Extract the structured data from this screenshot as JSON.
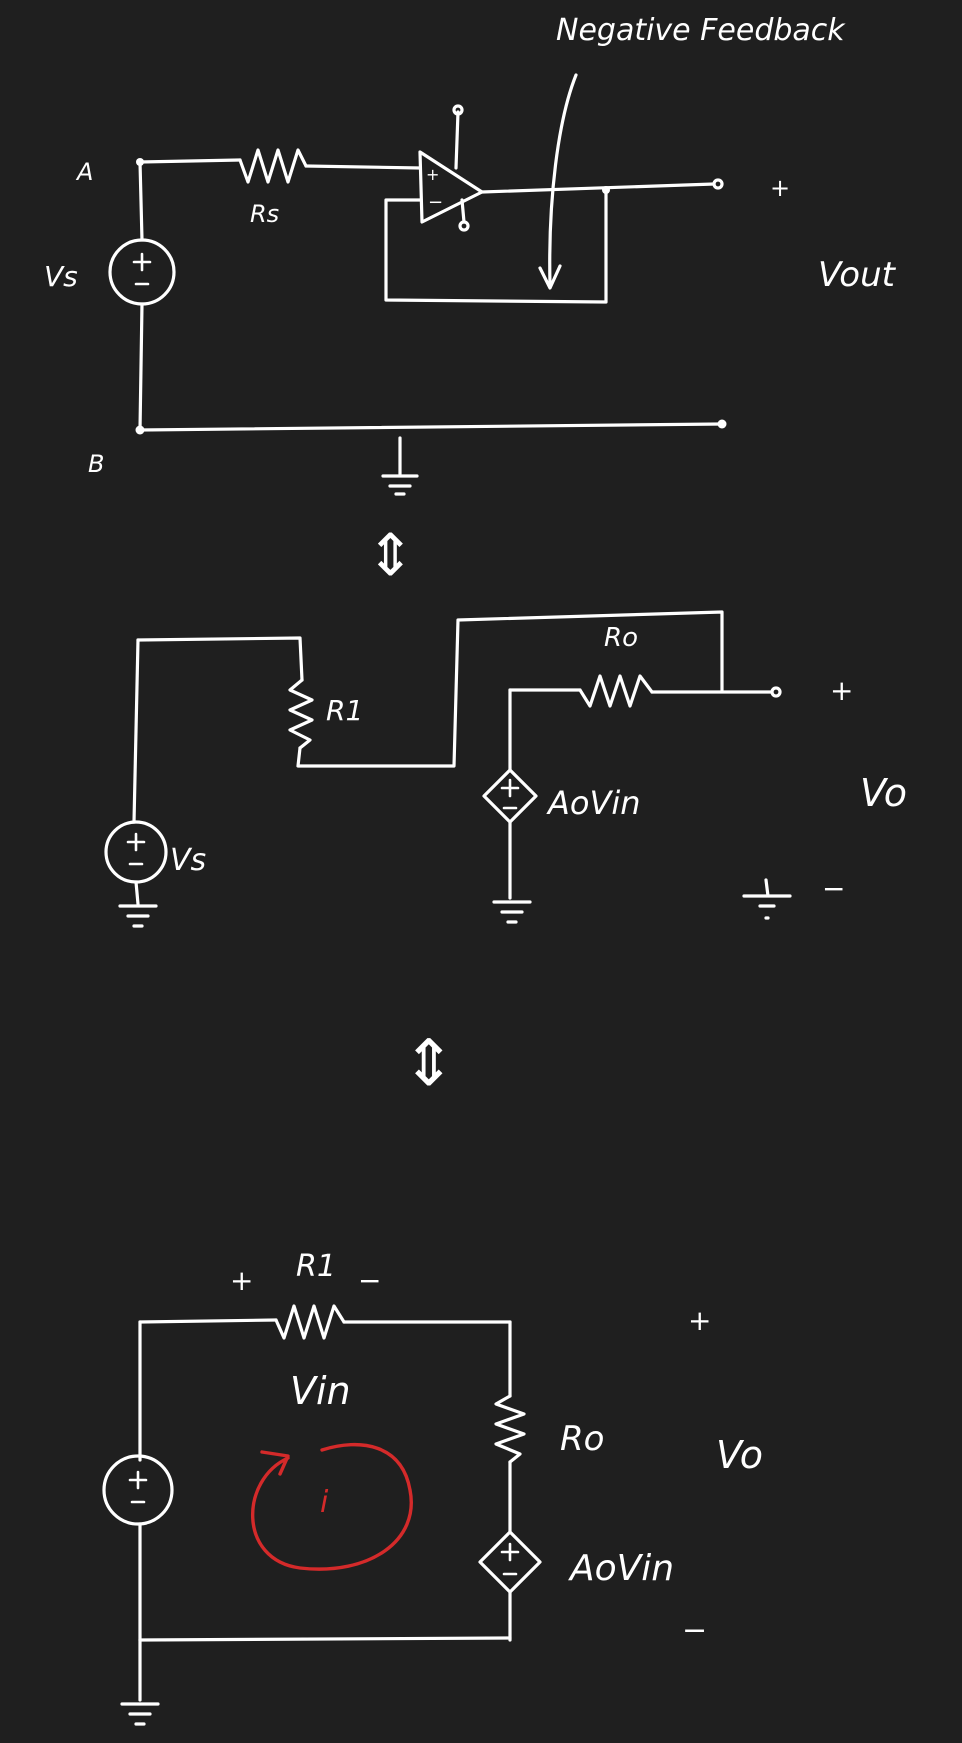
{
  "colors": {
    "background": "#1f1f1f",
    "ink": "#ffffff",
    "loop_current": "#d42a2a"
  },
  "top_circuit": {
    "feedback_label": "Negative Feedback",
    "node_a": "A",
    "node_b": "B",
    "source_label": "Vs",
    "source_resistor": "Rs",
    "opamp_plus": "+",
    "opamp_minus": "−",
    "output_plus": "+",
    "output_label": "Vout"
  },
  "middle_circuit": {
    "input_resistor": "R1",
    "output_resistor": "Ro",
    "dependent_source": "AoVin",
    "source_label": "Vs",
    "output_plus": "+",
    "output_label": "Vo",
    "output_minus": "−"
  },
  "bottom_circuit": {
    "resistor_plus": "+",
    "input_resistor": "R1",
    "resistor_minus": "−",
    "vin_label": "Vin",
    "loop_current": "i",
    "output_resistor": "Ro",
    "dependent_source": "AoVin",
    "output_plus": "+",
    "output_label": "Vo",
    "output_minus": "−"
  },
  "equivalence_symbols": [
    "⇕",
    "⇕"
  ]
}
